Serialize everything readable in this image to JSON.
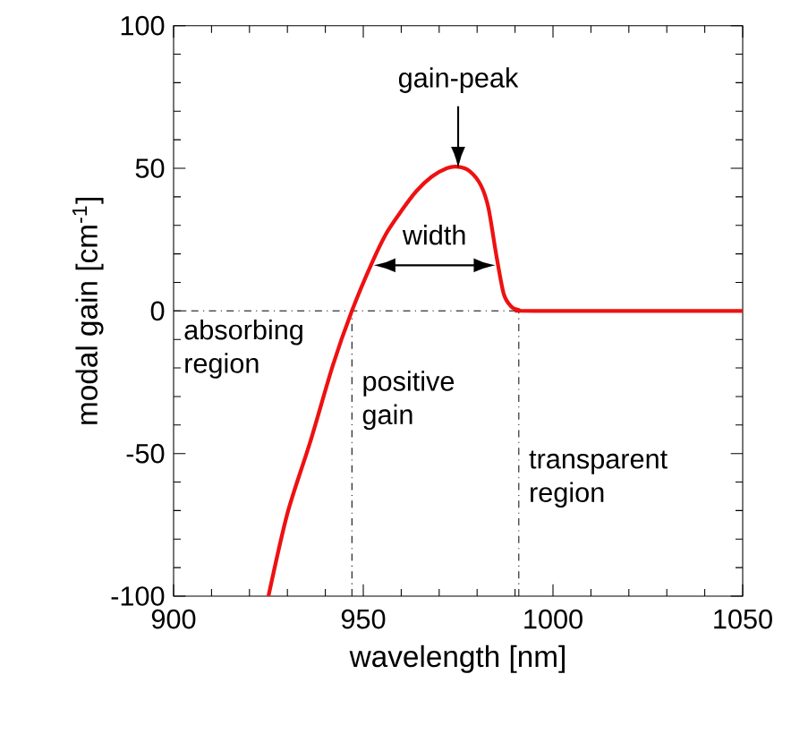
{
  "chart_data": {
    "type": "line",
    "xlabel": "wavelength [nm]",
    "ylabel": "modal gain [cm$^{-1}$]",
    "x": [
      925,
      930,
      936,
      942,
      947,
      952,
      956,
      960,
      964,
      968,
      972,
      975,
      978,
      981,
      983,
      985,
      987,
      989,
      991,
      995,
      1050
    ],
    "series": [
      {
        "color": "#ee1111",
        "values": [
          -100,
          -71,
          -46,
          -19,
          0,
          16,
          27,
          35,
          42,
          47,
          50,
          50.5,
          49,
          44,
          36,
          20,
          6,
          1.5,
          0.3,
          0,
          0
        ]
      }
    ],
    "xlim": [
      900,
      1050
    ],
    "ylim": [
      -100,
      100
    ],
    "xticks": [
      900,
      950,
      1000,
      1050
    ],
    "yticks": [
      -100,
      -50,
      0,
      50,
      100
    ],
    "ref_lines": [
      {
        "axis": "y",
        "value": 0,
        "line_style": "dashdot"
      },
      {
        "axis": "x",
        "value": 947,
        "line_style": "dashdot"
      },
      {
        "axis": "x",
        "value": 991,
        "line_style": "dashdot"
      }
    ],
    "annotations": [
      {
        "text": "gain-peak",
        "x": 975,
        "y": 50
      },
      "width",
      "absorbing region",
      "positive gain",
      "transparent region"
    ],
    "marker": "none",
    "line_style": "solid"
  }
}
